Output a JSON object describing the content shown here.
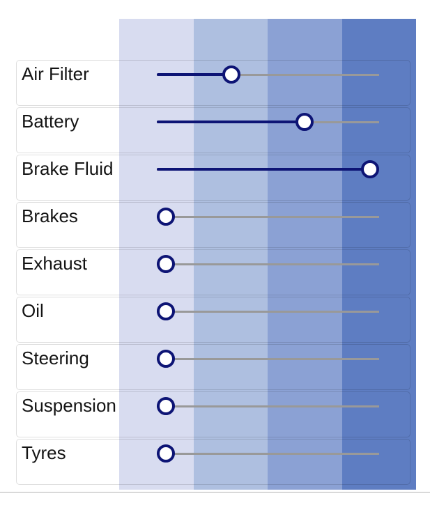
{
  "panel": {
    "description": "Vehicle maintenance severity sliders",
    "background_color": "#ffffff",
    "divider_color": "#d9d9d9"
  },
  "bands": {
    "colors": [
      "#d8dcf0",
      "#aebfe0",
      "#8ba1d4",
      "#5e7dc2"
    ]
  },
  "slider_style": {
    "fill_color": "#0d1475",
    "empty_track_color": "#999999",
    "handle_ring_color": "#0d1475",
    "handle_fill_color": "#ffffff",
    "min": 0,
    "max": 100
  },
  "rows": [
    {
      "label": "Air Filter",
      "value_percent": 32
    },
    {
      "label": "Battery",
      "value_percent": 68
    },
    {
      "label": "Brake Fluid",
      "value_percent": 100
    },
    {
      "label": "Brakes",
      "value_percent": 0
    },
    {
      "label": "Exhaust",
      "value_percent": 0
    },
    {
      "label": "Oil",
      "value_percent": 0
    },
    {
      "label": "Steering",
      "value_percent": 0
    },
    {
      "label": "Suspension",
      "value_percent": 0
    },
    {
      "label": "Tyres",
      "value_percent": 0
    }
  ]
}
